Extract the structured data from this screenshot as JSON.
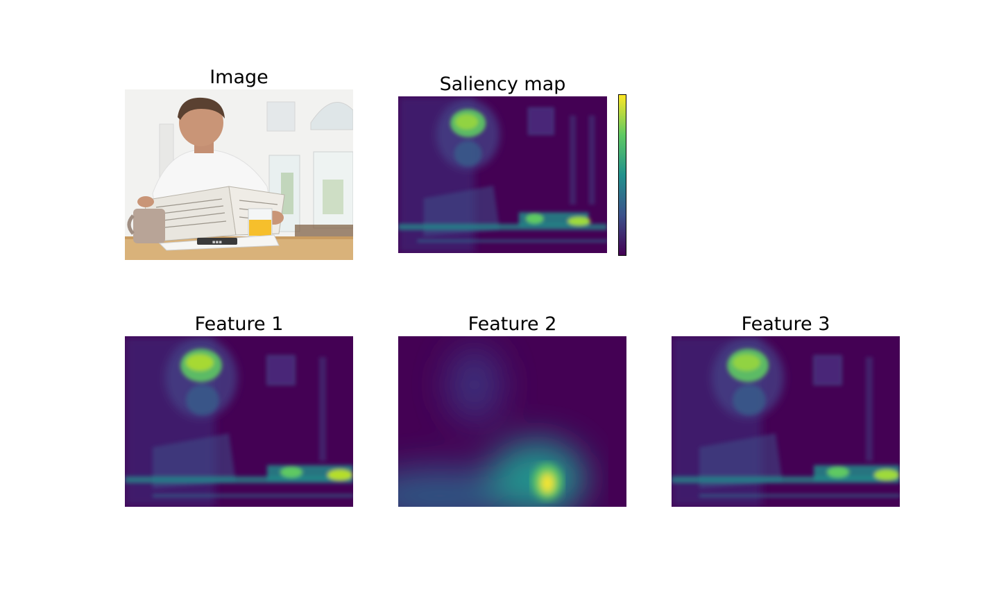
{
  "titles": {
    "image": "Image",
    "saliency": "Saliency map",
    "feature1": "Feature 1",
    "feature2": "Feature 2",
    "feature3": "Feature 3"
  },
  "colors": {
    "background": "#ffffff",
    "viridis_low": "#440154",
    "viridis_mid_low": "#3b528b",
    "viridis_mid": "#21918c",
    "viridis_mid_high": "#5ec962",
    "viridis_high": "#fde725"
  },
  "photo_text": {
    "device_label": "▪▪▪"
  }
}
